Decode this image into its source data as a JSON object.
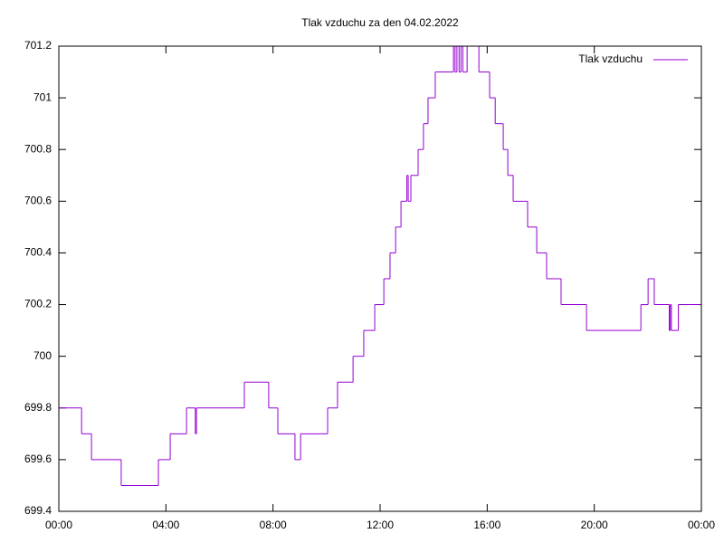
{
  "chart_data": {
    "type": "line",
    "drawstyle": "steps-post",
    "title": "Tlak vzduchu za den 04.02.2022",
    "x": [
      0,
      0.85,
      1.22,
      2.33,
      3.72,
      4.16,
      4.77,
      5.1,
      5.14,
      6.93,
      7.84,
      8.18,
      8.82,
      9.03,
      10.04,
      10.41,
      10.99,
      11.39,
      11.8,
      12.14,
      12.37,
      12.58,
      12.78,
      13.0,
      13.05,
      13.15,
      13.42,
      13.62,
      13.79,
      14.06,
      14.74,
      14.8,
      14.87,
      14.95,
      15.02,
      15.09,
      15.25,
      15.69,
      16.09,
      16.3,
      16.6,
      16.77,
      16.97,
      17.51,
      17.85,
      18.22,
      18.76,
      19.71,
      21.74,
      22.01,
      22.24,
      22.8,
      22.84,
      22.88,
      23.14,
      24
    ],
    "series": [
      {
        "name": "Tlak vzduchu",
        "color": "#9400d3",
        "values": [
          699.8,
          699.7,
          699.6,
          699.5,
          699.6,
          699.7,
          699.8,
          699.7,
          699.8,
          699.9,
          699.8,
          699.7,
          699.6,
          699.7,
          699.8,
          699.9,
          700.0,
          700.1,
          700.2,
          700.3,
          700.4,
          700.5,
          700.6,
          700.7,
          700.6,
          700.7,
          700.8,
          700.9,
          701.0,
          701.1,
          701.2,
          701.1,
          701.2,
          701.1,
          701.2,
          701.1,
          701.2,
          701.1,
          701.0,
          700.9,
          700.8,
          700.7,
          700.6,
          700.5,
          700.4,
          700.3,
          700.2,
          700.1,
          700.2,
          700.3,
          700.2,
          700.1,
          700.2,
          700.1,
          700.2,
          700.2
        ]
      }
    ],
    "xlim": [
      0,
      24
    ],
    "xticks": [
      {
        "value": 0,
        "label": "00:00"
      },
      {
        "value": 4,
        "label": "04:00"
      },
      {
        "value": 8,
        "label": "08:00"
      },
      {
        "value": 12,
        "label": "12:00"
      },
      {
        "value": 16,
        "label": "16:00"
      },
      {
        "value": 20,
        "label": "20:00"
      },
      {
        "value": 24,
        "label": "00:00"
      }
    ],
    "ylim": [
      699.4,
      701.2
    ],
    "yticks": [
      699.4,
      699.6,
      699.8,
      700,
      700.2,
      700.4,
      700.6,
      700.8,
      701,
      701.2
    ],
    "grid": false,
    "legend": "top-right"
  }
}
